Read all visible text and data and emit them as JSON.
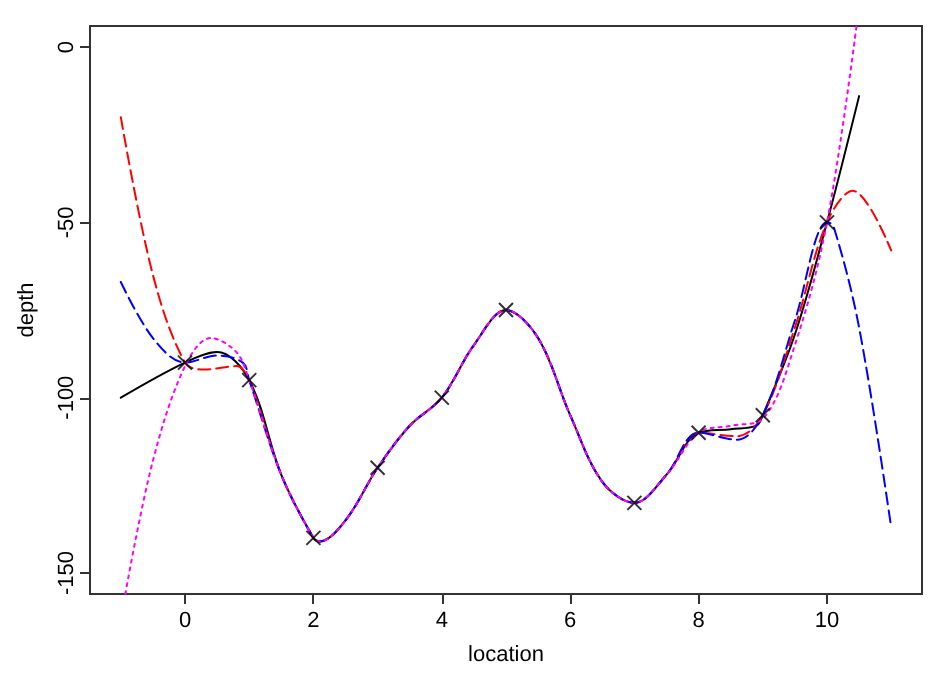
{
  "chart_data": {
    "type": "line",
    "xlabel": "location",
    "ylabel": "depth",
    "xlim": [
      -1.48,
      11.48
    ],
    "ylim": [
      -156,
      6
    ],
    "xticks": [
      0,
      2,
      4,
      6,
      8,
      10
    ],
    "yticks": [
      0,
      -50,
      -100,
      -150
    ],
    "grid": false,
    "series": [
      {
        "color": "#000000",
        "line_style": "solid",
        "marker": "none",
        "x": [
          -1,
          0,
          0.5,
          1,
          1.5,
          2,
          2.1,
          2.5,
          3,
          3.5,
          4,
          4.5,
          5,
          5.5,
          6,
          6.5,
          7,
          7.5,
          8,
          8.5,
          8.9,
          9,
          9.5,
          10,
          10.5
        ],
        "values": [
          -100,
          -90,
          -87,
          -95,
          -122,
          -140,
          -141,
          -135,
          -120,
          -108,
          -100,
          -85,
          -75,
          -83,
          -105,
          -124,
          -130,
          -122,
          -110,
          -109,
          -108,
          -105,
          -82,
          -50,
          -14
        ]
      },
      {
        "color": "#ff0000",
        "line_style": "dashed",
        "marker": "none",
        "x": [
          -1,
          -0.5,
          0,
          0.3,
          0.8,
          1,
          1.5,
          2,
          2.1,
          2.5,
          3,
          3.5,
          4,
          4.5,
          5,
          5.5,
          6,
          6.5,
          7,
          7.5,
          8,
          8.6,
          9,
          9.5,
          10,
          10.4,
          11
        ],
        "values": [
          -20,
          -65,
          -90,
          -92,
          -91,
          -95,
          -122,
          -140,
          -141,
          -135,
          -120,
          -108,
          -100,
          -85,
          -75,
          -83,
          -105,
          -124,
          -130,
          -122,
          -110,
          -111,
          -105,
          -80,
          -50,
          -41,
          -58
        ]
      },
      {
        "color": "#0000ff",
        "line_style": "dashed",
        "marker": "none",
        "x": [
          -1,
          -0.5,
          0,
          0.5,
          0.9,
          1,
          1.5,
          2,
          2.1,
          2.5,
          3,
          3.5,
          4,
          4.5,
          5,
          5.5,
          6,
          6.5,
          7,
          7.5,
          8,
          8.6,
          9,
          9.5,
          10,
          10.1,
          10.5,
          11
        ],
        "values": [
          -67,
          -83,
          -90,
          -88,
          -90,
          -95,
          -122,
          -140,
          -141,
          -135,
          -120,
          -108,
          -100,
          -85,
          -75,
          -83,
          -105,
          -124,
          -130,
          -122,
          -110,
          -112,
          -105,
          -78,
          -50,
          -51,
          -80,
          -137
        ]
      },
      {
        "color": "#ff00ff",
        "line_style": "dotted",
        "marker": "none",
        "x": [
          -0.93,
          -0.5,
          0,
          0.4,
          0.8,
          1,
          1.5,
          2,
          2.1,
          2.5,
          3,
          3.5,
          4,
          4.5,
          5,
          5.5,
          6,
          6.5,
          7,
          7.5,
          8,
          8.5,
          9,
          9.5,
          10,
          10.46
        ],
        "values": [
          -156,
          -118,
          -91,
          -83,
          -87,
          -95,
          -122,
          -140,
          -141,
          -135,
          -120,
          -108,
          -100,
          -85,
          -75,
          -83,
          -105,
          -124,
          -130,
          -122,
          -110,
          -108,
          -106,
          -85,
          -50,
          6
        ]
      },
      {
        "type": "scatter",
        "color": "#000000",
        "marker": "cross",
        "x": [
          0,
          1,
          2,
          3,
          4,
          5,
          7,
          8,
          9,
          10
        ],
        "values": [
          -90,
          -95,
          -140,
          -120,
          -100,
          -75,
          -130,
          -110,
          -105,
          -50
        ]
      }
    ]
  }
}
